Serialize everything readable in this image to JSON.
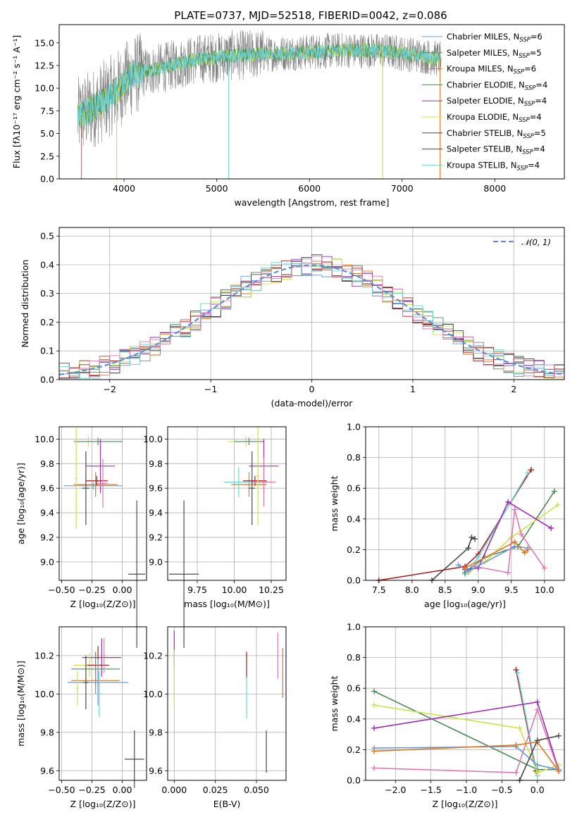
{
  "page_title": "PLATE=0737, MJD=52518, FIBERID=0042, z=0.086",
  "colors": {
    "Chabrier MILES": "#6f9ad8",
    "Salpeter MILES": "#7e7e7e",
    "Kroupa MILES": "#d7792a",
    "Chabrier ELODIE": "#4f8a5a",
    "Salpeter ELODIE": "#9a2fb0",
    "Kroupa ELODIE": "#c9e34f",
    "Chabrier STELIB": "#4a4a4a",
    "Salpeter STELIB": "#a31d1d",
    "Kroupa STELIB": "#6fd4d6",
    "pink": "#e079b0"
  },
  "chart_data": [
    {
      "id": "spectrum",
      "type": "line",
      "title": "PLATE=0737, MJD=52518, FIBERID=0042, z=0.086",
      "xlabel": "wavelength [Angstrom, rest frame]",
      "ylabel": "Flux [fλ10⁻¹⁷ erg cm⁻² s⁻¹ A⁻¹]",
      "xlim": [
        3300,
        8750
      ],
      "ylim": [
        0,
        17
      ],
      "xticks": [
        "4000",
        "5000",
        "6000",
        "7000",
        "8000"
      ],
      "yticks": [
        "0.0",
        "2.5",
        "5.0",
        "7.5",
        "10.0",
        "12.5",
        "15.0"
      ],
      "x_range_data": [
        3500,
        7420
      ],
      "continuum": [
        [
          3500,
          6.8
        ],
        [
          3700,
          8.0
        ],
        [
          3900,
          9.5
        ],
        [
          4100,
          11.5
        ],
        [
          4400,
          12.2
        ],
        [
          4800,
          13.2
        ],
        [
          5200,
          13.6
        ],
        [
          5600,
          13.8
        ],
        [
          6000,
          14.0
        ],
        [
          6400,
          14.2
        ],
        [
          6800,
          14.1
        ],
        [
          7200,
          13.6
        ],
        [
          7420,
          13.2
        ]
      ],
      "spikes_down": [
        3540,
        3920,
        5130,
        6790,
        7410
      ],
      "legend": [
        {
          "label": "Chabrier MILES, N",
          "sub": "SSP",
          "value": "=6"
        },
        {
          "label": "Salpeter MILES, N",
          "sub": "SSP",
          "value": "=5"
        },
        {
          "label": "Kroupa MILES, N",
          "sub": "SSP",
          "value": "=6"
        },
        {
          "label": "Chabrier ELODIE, N",
          "sub": "SSP",
          "value": "=4"
        },
        {
          "label": "Salpeter ELODIE, N",
          "sub": "SSP",
          "value": "=4"
        },
        {
          "label": "Kroupa ELODIE, N",
          "sub": "SSP",
          "value": "=4"
        },
        {
          "label": "Chabrier STELIB, N",
          "sub": "SSP",
          "value": "=5"
        },
        {
          "label": "Salpeter STELIB, N",
          "sub": "SSP",
          "value": "=4"
        },
        {
          "label": "Kroupa STELIB, N",
          "sub": "SSP",
          "value": "=4"
        }
      ]
    },
    {
      "id": "residuals",
      "type": "line",
      "xlabel": "(data-model)/error",
      "ylabel": "Normed distribution",
      "xlim": [
        -2.5,
        2.5
      ],
      "ylim": [
        0,
        0.53
      ],
      "xticks": [
        "−2",
        "−1",
        "0",
        "1",
        "2"
      ],
      "yticks": [
        "0.0",
        "0.1",
        "0.2",
        "0.3",
        "0.4",
        "0.5"
      ],
      "bin_width": 0.1,
      "gauss_label": "𝒩(0, 1)"
    },
    {
      "id": "age_vs_Z",
      "type": "scatter",
      "xlabel": "Z [log₁₀(Z/Z⊙)]",
      "ylabel": "age  [log₁₀(age/yr)]",
      "xlim": [
        -0.52,
        0.2
      ],
      "ylim": [
        8.85,
        10.1
      ],
      "xticks": [
        "−0.50",
        "−0.25",
        "0.00"
      ],
      "yticks": [
        "9.0",
        "9.2",
        "9.4",
        "9.6",
        "9.8",
        "10.0"
      ],
      "points": [
        {
          "c": "Kroupa ELODIE",
          "x": -0.28,
          "y": 9.98,
          "xe": 0.12,
          "ye": 0.04
        },
        {
          "c": "Chabrier ELODIE",
          "x": -0.2,
          "y": 9.98,
          "xe": 0.2,
          "ye": 0.03
        },
        {
          "c": "Salpeter ELODIE",
          "x": -0.18,
          "y": 9.78,
          "xe": 0.12,
          "ye": 0.22
        },
        {
          "c": "Kroupa MILES",
          "x": -0.22,
          "y": 9.63,
          "xe": 0.18,
          "ye": 0.1
        },
        {
          "c": "Salpeter STELIB",
          "x": -0.21,
          "y": 9.66,
          "xe": 0.09,
          "ye": 0.04
        },
        {
          "c": "Chabrier MILES",
          "x": -0.24,
          "y": 9.62,
          "xe": 0.24,
          "ye": 0.03
        },
        {
          "c": "pink",
          "x": -0.16,
          "y": 9.64,
          "xe": 0.04,
          "ye": 0.2
        },
        {
          "c": "Chabrier STELIB",
          "x": -0.3,
          "y": 9.6,
          "xe": 0.03,
          "ye": 0.3
        },
        {
          "c": "Kroupa ELODIE",
          "x": -0.38,
          "y": 9.68,
          "xe": 0.01,
          "ye": 0.41
        },
        {
          "c": "Chabrier STELIB",
          "x": 0.12,
          "y": 8.9,
          "xe": 0.07,
          "ye": 0.6
        }
      ]
    },
    {
      "id": "age_vs_mass",
      "type": "scatter",
      "xlabel": "mass [log₁₀(M/M⊙)]",
      "ylabel": "",
      "xlim": [
        9.55,
        10.35
      ],
      "ylim": [
        8.85,
        10.1
      ],
      "xticks": [
        "9.75",
        "10.00",
        "10.25"
      ],
      "yticks": [
        "9.0",
        "9.2",
        "9.4",
        "9.6",
        "9.8",
        "10.0"
      ],
      "points": [
        {
          "c": "Kroupa ELODIE",
          "x": 10.08,
          "y": 9.98,
          "xe": 0.12,
          "ye": 0.04
        },
        {
          "c": "Chabrier ELODIE",
          "x": 10.1,
          "y": 9.98,
          "xe": 0.1,
          "ye": 0.03
        },
        {
          "c": "Salpeter ELODIE",
          "x": 10.2,
          "y": 9.78,
          "xe": 0.1,
          "ye": 0.22
        },
        {
          "c": "Kroupa MILES",
          "x": 10.1,
          "y": 9.63,
          "xe": 0.12,
          "ye": 0.1
        },
        {
          "c": "Salpeter STELIB",
          "x": 10.14,
          "y": 9.66,
          "xe": 0.08,
          "ye": 0.04
        },
        {
          "c": "Kroupa STELIB",
          "x": 10.03,
          "y": 9.65,
          "xe": 0.1,
          "ye": 0.12
        },
        {
          "c": "pink",
          "x": 10.2,
          "y": 9.65,
          "xe": 0.08,
          "ye": 0.2
        },
        {
          "c": "Chabrier STELIB",
          "x": 10.12,
          "y": 9.6,
          "xe": 0.02,
          "ye": 0.3
        },
        {
          "c": "Kroupa ELODIE",
          "x": 10.16,
          "y": 9.7,
          "xe": 0.01,
          "ye": 0.4
        },
        {
          "c": "Chabrier STELIB",
          "x": 9.66,
          "y": 8.9,
          "xe": 0.1,
          "ye": 0.6
        }
      ]
    },
    {
      "id": "weight_vs_age",
      "type": "line",
      "xlabel": "age  [log₁₀(age/yr)]",
      "ylabel": "mass weight",
      "xlim": [
        7.3,
        10.3
      ],
      "ylim": [
        0,
        1
      ],
      "xticks": [
        "7.5",
        "8.0",
        "8.5",
        "9.0",
        "9.5",
        "10.0"
      ],
      "yticks": [
        "0.0",
        "0.2",
        "0.4",
        "0.6",
        "0.8",
        "1.0"
      ],
      "series": [
        {
          "c": "Salpeter STELIB",
          "points": [
            [
              7.5,
              0.0
            ],
            [
              8.8,
              0.09
            ],
            [
              9.0,
              0.17
            ],
            [
              9.8,
              0.72
            ]
          ]
        },
        {
          "c": "Kroupa STELIB",
          "points": [
            [
              8.8,
              0.04
            ],
            [
              9.0,
              0.15
            ],
            [
              9.75,
              0.7
            ]
          ]
        },
        {
          "c": "Chabrier ELODIE",
          "points": [
            [
              8.8,
              0.05
            ],
            [
              9.1,
              0.15
            ],
            [
              9.6,
              0.22
            ],
            [
              10.15,
              0.58
            ]
          ]
        },
        {
          "c": "Kroupa ELODIE",
          "points": [
            [
              8.85,
              0.05
            ],
            [
              9.1,
              0.12
            ],
            [
              9.5,
              0.28
            ],
            [
              10.2,
              0.49
            ]
          ]
        },
        {
          "c": "Salpeter ELODIE",
          "points": [
            [
              8.8,
              0.07
            ],
            [
              9.0,
              0.08
            ],
            [
              9.45,
              0.51
            ],
            [
              10.1,
              0.34
            ]
          ]
        },
        {
          "c": "Chabrier STELIB",
          "points": [
            [
              8.3,
              0.0
            ],
            [
              8.85,
              0.21
            ],
            [
              8.9,
              0.28
            ],
            [
              8.95,
              0.27
            ]
          ]
        },
        {
          "c": "pink",
          "points": [
            [
              8.95,
              0.09
            ],
            [
              9.45,
              0.05
            ],
            [
              9.55,
              0.46
            ],
            [
              9.65,
              0.3
            ],
            [
              10.0,
              0.08
            ]
          ]
        },
        {
          "c": "Chabrier MILES",
          "points": [
            [
              8.7,
              0.1
            ],
            [
              8.85,
              0.06
            ],
            [
              9.55,
              0.22
            ],
            [
              9.75,
              0.21
            ]
          ]
        },
        {
          "c": "Kroupa MILES",
          "points": [
            [
              8.8,
              0.08
            ],
            [
              9.55,
              0.25
            ],
            [
              9.7,
              0.18
            ],
            [
              9.75,
              0.2
            ]
          ]
        }
      ]
    },
    {
      "id": "mass_vs_Z",
      "type": "scatter",
      "xlabel": "Z [log₁₀(Z/Z⊙)]",
      "ylabel": "mass [log₁₀(M/M⊙)]",
      "xlim": [
        -0.52,
        0.2
      ],
      "ylim": [
        9.55,
        10.35
      ],
      "xticks": [
        "−0.50",
        "−0.25",
        "0.00"
      ],
      "yticks": [
        "9.6",
        "9.8",
        "10.0",
        "10.2"
      ],
      "points": [
        {
          "c": "Salpeter ELODIE",
          "x": -0.17,
          "y": 10.19,
          "xe": 0.16,
          "ye": 0.1
        },
        {
          "c": "Kroupa ELODIE",
          "x": -0.27,
          "y": 10.15,
          "xe": 0.13,
          "ye": 0.06
        },
        {
          "c": "Salpeter STELIB",
          "x": -0.2,
          "y": 10.15,
          "xe": 0.09,
          "ye": 0.1
        },
        {
          "c": "Chabrier ELODIE",
          "x": -0.22,
          "y": 10.13,
          "xe": 0.2,
          "ye": 0.09
        },
        {
          "c": "Kroupa MILES",
          "x": -0.22,
          "y": 10.07,
          "xe": 0.2,
          "ye": 0.07
        },
        {
          "c": "Chabrier MILES",
          "x": -0.2,
          "y": 10.06,
          "xe": 0.25,
          "ye": 0.12
        },
        {
          "c": "Kroupa STELIB",
          "x": -0.19,
          "y": 10.0,
          "xe": 0.03,
          "ye": 0.12
        },
        {
          "c": "Chabrier STELIB",
          "x": -0.3,
          "y": 10.06,
          "xe": 0.02,
          "ye": 0.14
        },
        {
          "c": "Kroupa ELODIE",
          "x": -0.37,
          "y": 10.03,
          "xe": 0.01,
          "ye": 0.09
        },
        {
          "c": "pink",
          "x": -0.15,
          "y": 10.2,
          "xe": 0.01,
          "ye": 0.09
        },
        {
          "c": "Chabrier STELIB",
          "x": 0.1,
          "y": 9.66,
          "xe": 0.08,
          "ye": 0.15
        }
      ]
    },
    {
      "id": "mass_vs_ebv",
      "type": "scatter",
      "xlabel": "E(B-V)",
      "ylabel": "",
      "xlim": [
        -0.004,
        0.068
      ],
      "ylim": [
        9.55,
        10.35
      ],
      "xticks": [
        "0.000",
        "0.025",
        "0.050"
      ],
      "yticks": [
        "9.6",
        "9.8",
        "10.0",
        "10.2"
      ],
      "points": [
        {
          "c": "Salpeter ELODIE",
          "x": 0.0,
          "y": 10.23,
          "ye": 0.1
        },
        {
          "c": "Kroupa ELODIE",
          "x": 0.0,
          "y": 10.08,
          "ye": 0.15
        },
        {
          "c": "Salpeter STELIB",
          "x": 0.044,
          "y": 10.15,
          "ye": 0.07
        },
        {
          "c": "Kroupa STELIB",
          "x": 0.044,
          "y": 9.98,
          "ye": 0.11
        },
        {
          "c": "pink",
          "x": 0.063,
          "y": 10.2,
          "ye": 0.12
        },
        {
          "c": "Kroupa MILES",
          "x": 0.066,
          "y": 10.11,
          "ye": 0.13
        },
        {
          "c": "Chabrier STELIB",
          "x": 0.056,
          "y": 9.7,
          "ye": 0.11
        }
      ]
    },
    {
      "id": "weight_vs_Z",
      "type": "line",
      "xlabel": "Z [log₁₀(Z/Z⊙)]",
      "ylabel": "mass weight",
      "xlim": [
        -2.42,
        0.38
      ],
      "ylim": [
        0,
        1
      ],
      "xticks": [
        "−2.0",
        "−1.5",
        "−1.0",
        "−0.5",
        "0.0"
      ],
      "yticks": [
        "0.0",
        "0.2",
        "0.4",
        "0.6",
        "0.8",
        "1.0"
      ],
      "series": [
        {
          "c": "Salpeter STELIB",
          "points": [
            [
              -0.3,
              0.72
            ],
            [
              -0.02,
              0.06
            ]
          ]
        },
        {
          "c": "Kroupa STELIB",
          "points": [
            [
              -0.28,
              0.7
            ],
            [
              0.0,
              0.03
            ]
          ]
        },
        {
          "c": "Chabrier ELODIE",
          "points": [
            [
              -2.3,
              0.58
            ],
            [
              0.0,
              0.07
            ],
            [
              0.3,
              0.07
            ]
          ]
        },
        {
          "c": "Kroupa ELODIE",
          "points": [
            [
              -2.3,
              0.49
            ],
            [
              -0.25,
              0.34
            ],
            [
              0.0,
              0.05
            ],
            [
              0.3,
              0.1
            ]
          ]
        },
        {
          "c": "Salpeter ELODIE",
          "points": [
            [
              -2.3,
              0.34
            ],
            [
              0.0,
              0.51
            ],
            [
              0.3,
              0.07
            ]
          ]
        },
        {
          "c": "pink",
          "points": [
            [
              -2.3,
              0.08
            ],
            [
              -0.3,
              0.05
            ],
            [
              0.0,
              0.46
            ],
            [
              0.3,
              0.06
            ]
          ]
        },
        {
          "c": "Chabrier MILES",
          "points": [
            [
              -2.3,
              0.21
            ],
            [
              -0.3,
              0.22
            ],
            [
              0.0,
              0.1
            ],
            [
              0.3,
              0.07
            ]
          ]
        },
        {
          "c": "Kroupa MILES",
          "points": [
            [
              -2.3,
              0.19
            ],
            [
              -0.3,
              0.23
            ],
            [
              0.0,
              0.25
            ],
            [
              0.3,
              0.06
            ]
          ]
        },
        {
          "c": "Chabrier STELIB",
          "points": [
            [
              -0.25,
              0.0
            ],
            [
              0.0,
              0.26
            ],
            [
              0.3,
              0.29
            ]
          ]
        }
      ]
    }
  ]
}
